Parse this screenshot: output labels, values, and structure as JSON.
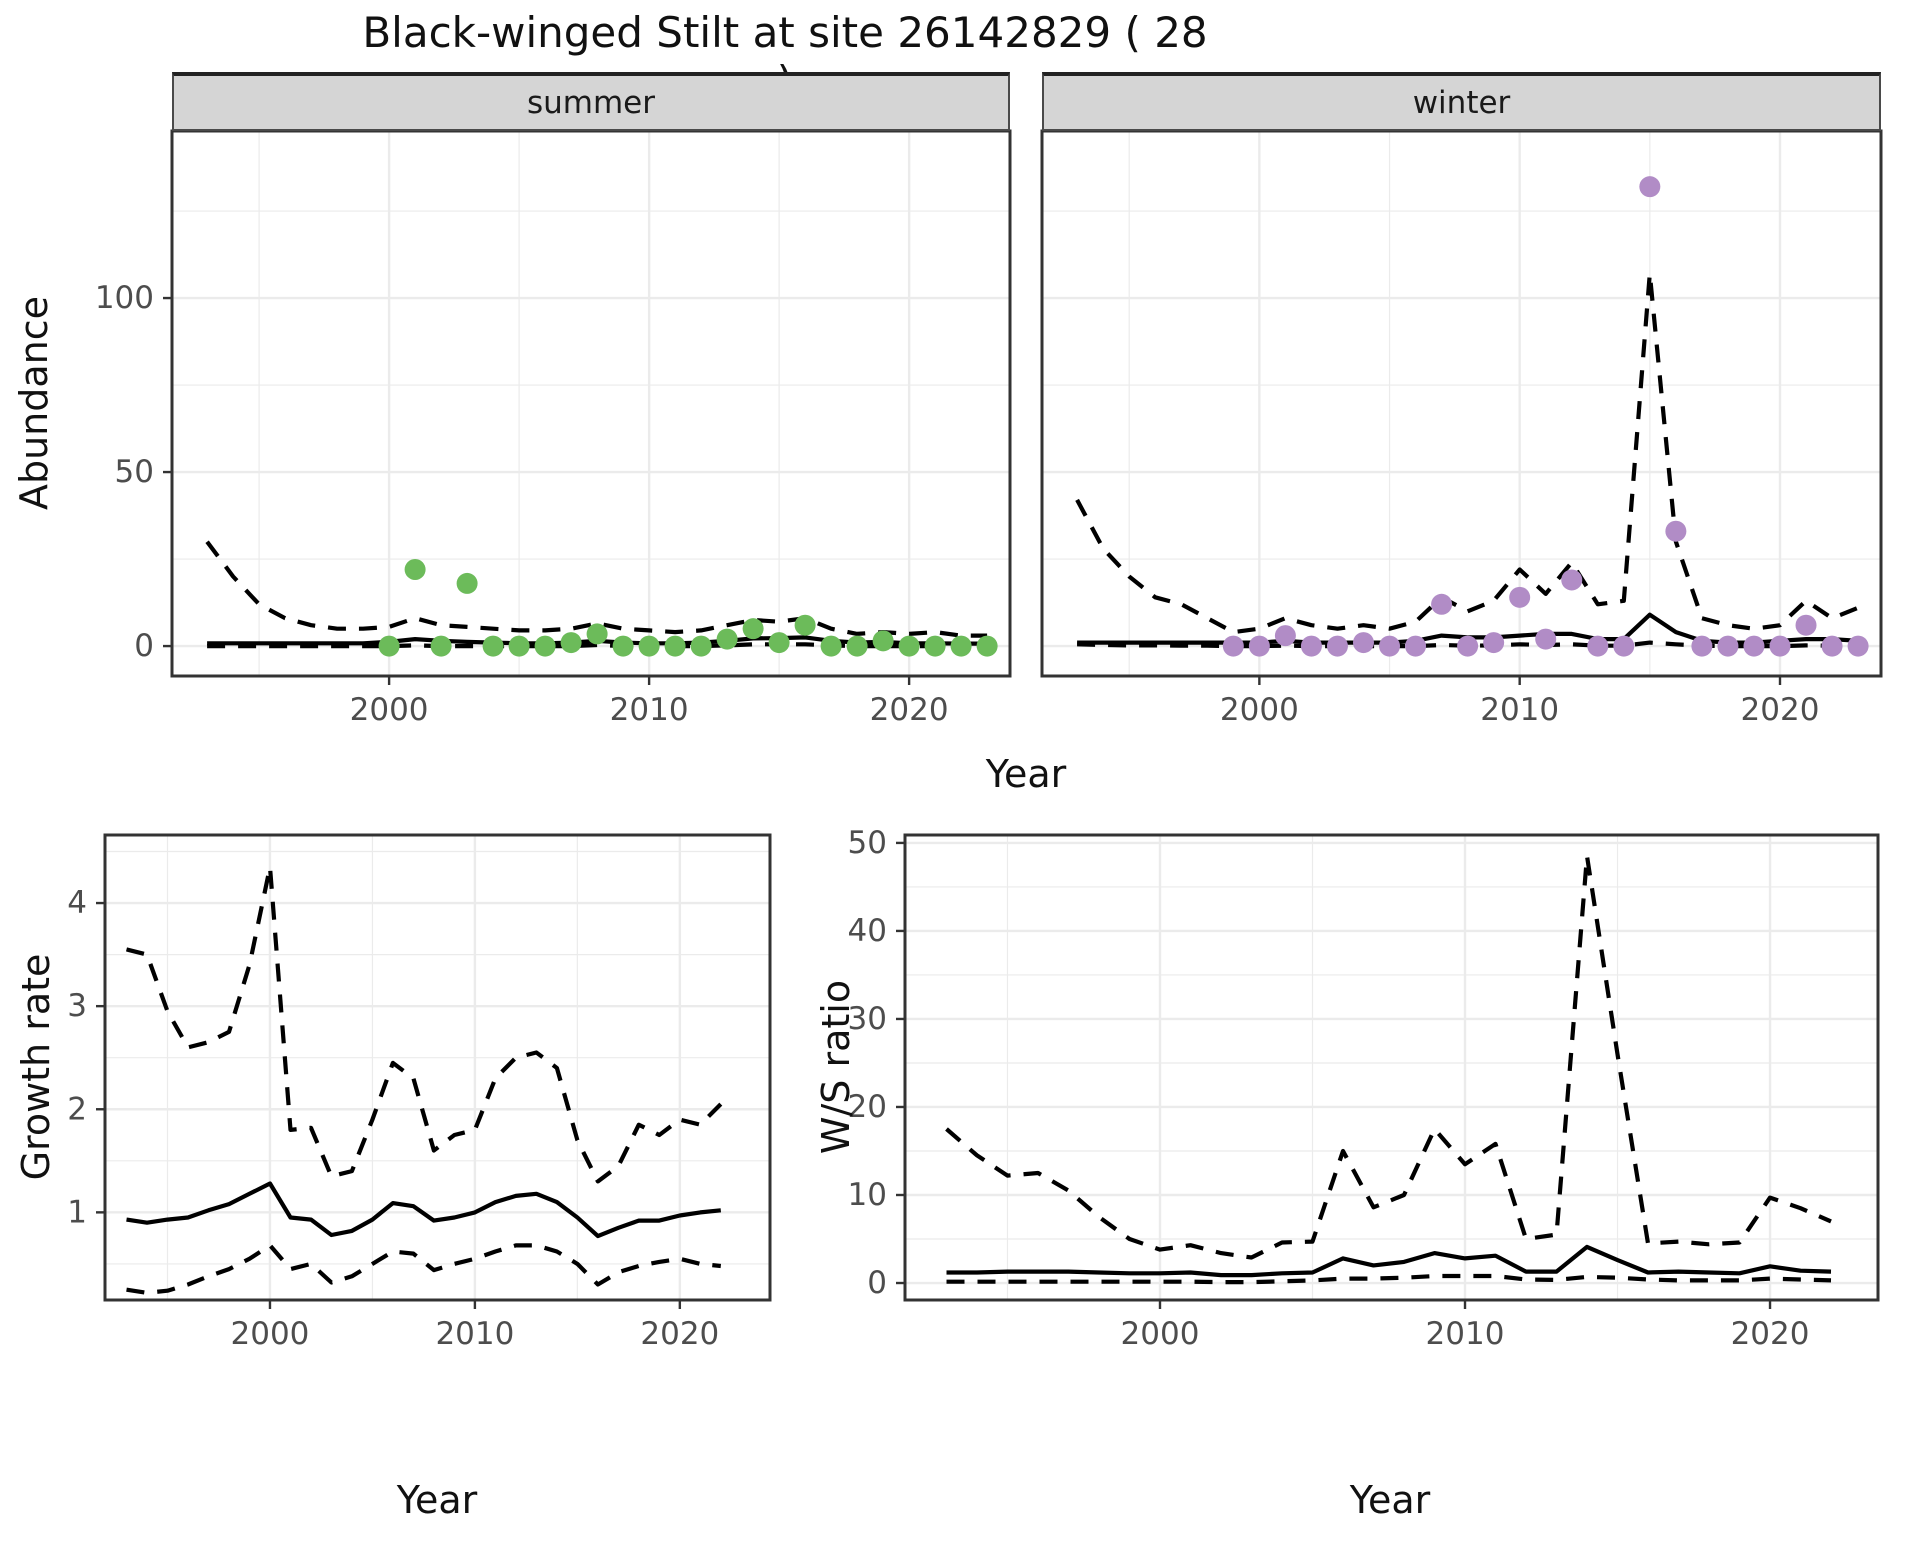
{
  "title": "Black-winged Stilt at site 26142829 ( 28 )",
  "facets": {
    "left": "summer",
    "right": "winter"
  },
  "axis_labels": {
    "abundance": "Abundance",
    "year_top": "Year",
    "growth": "Growth rate",
    "ws": "W/S ratio",
    "year_growth": "Year",
    "year_ws": "Year"
  },
  "colors": {
    "summer_point": "#6CBB5A",
    "winter_point": "#B18CC6",
    "line": "#000000",
    "grid": "#EBEBEB",
    "panel_border": "#333333",
    "tick_text": "#4D4D4D",
    "strip_bg": "#D5D5D5"
  },
  "chart_data": [
    {
      "type": "line",
      "key": "summer",
      "facet_label": "summer",
      "xlabel": "Year",
      "ylabel": "Abundance",
      "xlim": [
        1991.65,
        2023.88
      ],
      "ylim": [
        -8.6,
        148
      ],
      "x_ticks": [
        2000,
        2010,
        2020
      ],
      "y_ticks": [
        0,
        50,
        100
      ],
      "x": [
        1993,
        1994,
        1995,
        1996,
        1997,
        1998,
        1999,
        2000,
        2001,
        2002,
        2003,
        2004,
        2005,
        2006,
        2007,
        2008,
        2009,
        2010,
        2011,
        2012,
        2013,
        2014,
        2015,
        2016,
        2017,
        2018,
        2019,
        2020,
        2021,
        2022,
        2023
      ],
      "series": [
        {
          "name": "mean",
          "style": "solid",
          "values": [
            0.8,
            0.8,
            0.8,
            0.8,
            0.8,
            0.8,
            0.8,
            1.2,
            2,
            1.5,
            1.2,
            1,
            0.8,
            0.8,
            1,
            1.5,
            1,
            0.8,
            0.8,
            1,
            1.5,
            2.2,
            2.3,
            2.5,
            1.5,
            1,
            1.2,
            0.8,
            0.8,
            0.7,
            0.7
          ]
        },
        {
          "name": "ci_upper",
          "style": "dashed",
          "values": [
            30,
            20,
            12,
            8,
            6,
            5,
            5,
            5.5,
            8,
            6,
            5.5,
            5,
            4.5,
            4.5,
            5,
            6.5,
            5,
            4.5,
            4,
            4.5,
            6,
            7.5,
            7,
            8,
            5,
            3.5,
            4,
            3.5,
            4,
            3,
            3
          ]
        },
        {
          "name": "ci_lower",
          "style": "dashed",
          "values": [
            0,
            0,
            0,
            0,
            0,
            0,
            0,
            0,
            0.2,
            0,
            0,
            0,
            0,
            0,
            0,
            0.3,
            0,
            0,
            0,
            0,
            0.2,
            0.5,
            0.5,
            0.5,
            0.2,
            0,
            0,
            0,
            0,
            0,
            0
          ]
        },
        {
          "name": "observed",
          "style": "points",
          "color": "#6CBB5A",
          "x": [
            2000,
            2001,
            2002,
            2003,
            2004,
            2005,
            2006,
            2007,
            2008,
            2009,
            2010,
            2011,
            2012,
            2013,
            2014,
            2015,
            2016,
            2017,
            2018,
            2019,
            2020,
            2021,
            2022,
            2023
          ],
          "values": [
            0,
            22,
            0,
            18,
            0,
            0,
            0,
            1,
            3.5,
            0,
            0,
            0,
            0,
            2,
            5,
            1,
            6,
            0,
            0,
            1.5,
            0,
            0,
            0,
            0
          ]
        }
      ]
    },
    {
      "type": "line",
      "key": "winter",
      "facet_label": "winter",
      "xlabel": "Year",
      "ylabel": "Abundance",
      "xlim": [
        1991.65,
        2023.88
      ],
      "ylim": [
        -8.6,
        148
      ],
      "x_ticks": [
        2000,
        2010,
        2020
      ],
      "y_ticks": [
        0,
        50,
        100
      ],
      "x": [
        1993,
        1994,
        1995,
        1996,
        1997,
        1998,
        1999,
        2000,
        2001,
        2002,
        2003,
        2004,
        2005,
        2006,
        2007,
        2008,
        2009,
        2010,
        2011,
        2012,
        2013,
        2014,
        2015,
        2016,
        2017,
        2018,
        2019,
        2020,
        2021,
        2022,
        2023
      ],
      "series": [
        {
          "name": "mean",
          "style": "solid",
          "values": [
            1,
            1,
            1,
            1,
            1,
            1,
            1,
            1,
            1.5,
            1,
            1,
            1,
            1,
            1.5,
            3,
            2.5,
            2.5,
            3,
            3.5,
            3.5,
            2,
            2,
            9,
            4,
            1.5,
            1,
            1,
            1.5,
            2,
            2,
            1.5
          ]
        },
        {
          "name": "ci_upper",
          "style": "dashed",
          "values": [
            42,
            28,
            20,
            14,
            12,
            8,
            4,
            5,
            8,
            6,
            5,
            6,
            5,
            7,
            14,
            10,
            13,
            22,
            15,
            24,
            12,
            13,
            107,
            30,
            8,
            6,
            5,
            6,
            13,
            8,
            11
          ]
        },
        {
          "name": "ci_lower",
          "style": "dashed",
          "values": [
            0.5,
            0.3,
            0.2,
            0.2,
            0.1,
            0.1,
            0,
            0,
            0.1,
            0,
            0,
            0,
            0,
            0,
            0.3,
            0.1,
            0.2,
            0.5,
            0.3,
            0.5,
            0.1,
            0.1,
            1,
            0.5,
            0.1,
            0,
            0,
            0,
            0.2,
            0.1,
            0.1
          ]
        },
        {
          "name": "observed",
          "style": "points",
          "color": "#B18CC6",
          "x": [
            1999,
            2000,
            2001,
            2002,
            2003,
            2004,
            2005,
            2006,
            2007,
            2008,
            2009,
            2010,
            2011,
            2012,
            2013,
            2014,
            2015,
            2016,
            2017,
            2018,
            2019,
            2020,
            2021,
            2022,
            2023
          ],
          "values": [
            0,
            0,
            3,
            0,
            0,
            1,
            0,
            0,
            12,
            0,
            1,
            14,
            2,
            19,
            0,
            0,
            132,
            33,
            0,
            0,
            0,
            0,
            6,
            0,
            0
          ]
        }
      ]
    },
    {
      "type": "line",
      "key": "growth",
      "xlabel": "Year",
      "ylabel": "Growth rate",
      "xlim": [
        1991.95,
        2024.4
      ],
      "ylim": [
        0.15,
        4.66
      ],
      "x_ticks": [
        2000,
        2010,
        2020
      ],
      "y_ticks": [
        1,
        2,
        3,
        4
      ],
      "x": [
        1993,
        1994,
        1995,
        1996,
        1997,
        1998,
        1999,
        2000,
        2001,
        2002,
        2003,
        2004,
        2005,
        2006,
        2007,
        2008,
        2009,
        2010,
        2011,
        2012,
        2013,
        2014,
        2015,
        2016,
        2017,
        2018,
        2019,
        2020,
        2021,
        2022
      ],
      "series": [
        {
          "name": "mean",
          "style": "solid",
          "values": [
            0.93,
            0.9,
            0.93,
            0.95,
            1.02,
            1.08,
            1.18,
            1.28,
            0.95,
            0.93,
            0.78,
            0.82,
            0.93,
            1.09,
            1.06,
            0.92,
            0.95,
            1.0,
            1.1,
            1.16,
            1.18,
            1.1,
            0.95,
            0.77,
            0.85,
            0.92,
            0.92,
            0.97,
            1.0,
            1.02
          ]
        },
        {
          "name": "ci_upper",
          "style": "dashed",
          "values": [
            3.55,
            3.5,
            2.95,
            2.6,
            2.65,
            2.75,
            3.4,
            4.35,
            1.8,
            1.82,
            1.35,
            1.4,
            1.9,
            2.45,
            2.3,
            1.6,
            1.75,
            1.8,
            2.3,
            2.5,
            2.55,
            2.4,
            1.7,
            1.3,
            1.45,
            1.85,
            1.75,
            1.9,
            1.85,
            2.05
          ]
        },
        {
          "name": "ci_lower",
          "style": "dashed",
          "values": [
            0.25,
            0.22,
            0.24,
            0.3,
            0.38,
            0.45,
            0.55,
            0.68,
            0.45,
            0.5,
            0.32,
            0.38,
            0.5,
            0.62,
            0.6,
            0.44,
            0.5,
            0.55,
            0.62,
            0.68,
            0.68,
            0.62,
            0.5,
            0.3,
            0.42,
            0.48,
            0.52,
            0.55,
            0.5,
            0.48
          ]
        }
      ]
    },
    {
      "type": "line",
      "key": "ws",
      "xlabel": "Year",
      "ylabel": "W/S ratio",
      "xlim": [
        1991.64,
        2023.54
      ],
      "ylim": [
        -1.93,
        50.9
      ],
      "x_ticks": [
        2000,
        2010,
        2020
      ],
      "y_ticks": [
        0,
        10,
        20,
        30,
        40,
        50
      ],
      "x": [
        1993,
        1994,
        1995,
        1996,
        1997,
        1998,
        1999,
        2000,
        2001,
        2002,
        2003,
        2004,
        2005,
        2006,
        2007,
        2008,
        2009,
        2010,
        2011,
        2012,
        2013,
        2014,
        2015,
        2016,
        2017,
        2018,
        2019,
        2020,
        2021,
        2022
      ],
      "series": [
        {
          "name": "mean",
          "style": "solid",
          "values": [
            1.2,
            1.2,
            1.3,
            1.3,
            1.3,
            1.2,
            1.1,
            1.1,
            1.2,
            0.9,
            0.9,
            1.1,
            1.2,
            2.8,
            2.0,
            2.4,
            3.4,
            2.8,
            3.1,
            1.3,
            1.3,
            4.1,
            2.6,
            1.2,
            1.3,
            1.2,
            1.1,
            1.9,
            1.4,
            1.3
          ]
        },
        {
          "name": "ci_upper",
          "style": "dashed",
          "values": [
            17.5,
            14.5,
            12.2,
            12.5,
            10.5,
            7.5,
            5.0,
            3.8,
            4.3,
            3.4,
            2.9,
            4.6,
            4.7,
            15.0,
            8.6,
            10.0,
            17.5,
            13.5,
            15.8,
            5.0,
            5.5,
            48.5,
            26.0,
            4.5,
            4.7,
            4.4,
            4.6,
            9.7,
            8.5,
            7.0
          ]
        },
        {
          "name": "ci_lower",
          "style": "dashed",
          "values": [
            0.15,
            0.15,
            0.15,
            0.15,
            0.15,
            0.15,
            0.15,
            0.15,
            0.15,
            0.1,
            0.1,
            0.2,
            0.3,
            0.5,
            0.5,
            0.6,
            0.8,
            0.8,
            0.8,
            0.4,
            0.35,
            0.7,
            0.6,
            0.4,
            0.3,
            0.3,
            0.3,
            0.5,
            0.4,
            0.3
          ]
        }
      ]
    }
  ]
}
